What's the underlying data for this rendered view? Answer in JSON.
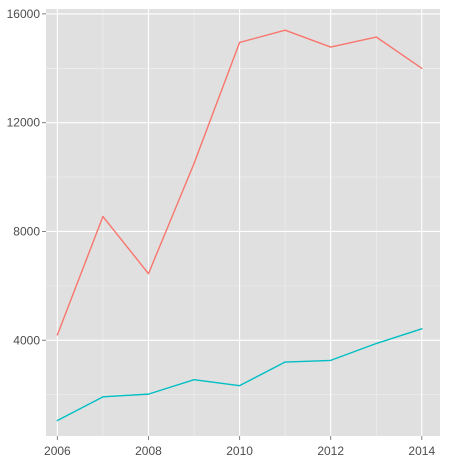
{
  "chart_data": {
    "type": "line",
    "title": "",
    "xlabel": "",
    "ylabel": "",
    "x": [
      2006,
      2007,
      2008,
      2009,
      2010,
      2011,
      2012,
      2013,
      2014
    ],
    "xlim": [
      2005.75,
      2014.4
    ],
    "ylim": [
      480,
      16180
    ],
    "x_ticks": [
      2006,
      2008,
      2010,
      2012,
      2014
    ],
    "x_tick_labels": [
      "2006",
      "2008",
      "2010",
      "2012",
      "2014"
    ],
    "y_ticks": [
      4000,
      8000,
      12000,
      16000
    ],
    "y_tick_labels": [
      "4000",
      "8000",
      "12000",
      "16000"
    ],
    "grid": true,
    "panel_background": "#e0e0e0",
    "series": [
      {
        "color": "#f8766d",
        "values": [
          4200,
          8550,
          6450,
          10500,
          14950,
          15400,
          14780,
          15150,
          14000
        ]
      },
      {
        "color": "#00bfc4",
        "values": [
          1050,
          1920,
          2020,
          2550,
          2330,
          3200,
          3260,
          3880,
          4420
        ]
      }
    ]
  }
}
